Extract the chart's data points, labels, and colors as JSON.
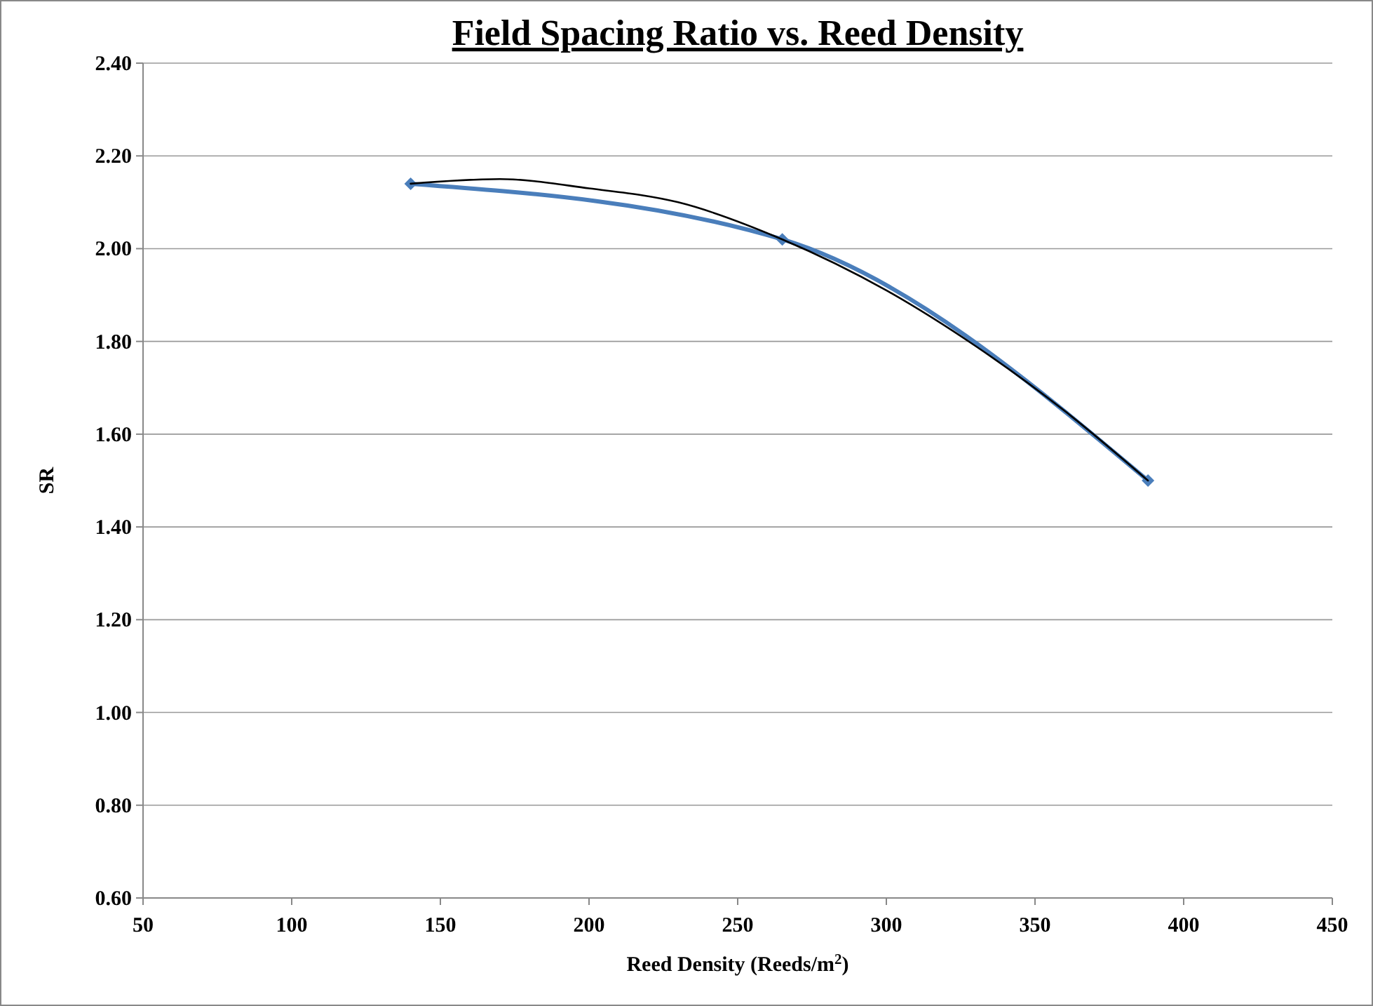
{
  "chart_data": {
    "type": "line",
    "title": "Field Spacing Ratio vs. Reed Density",
    "xlabel": "Reed Density (Reeds/m$^{2}$)",
    "ylabel": "SR",
    "xlim": [
      50,
      450
    ],
    "xticks": [
      50,
      100,
      150,
      200,
      250,
      300,
      350,
      400,
      450
    ],
    "ylim": [
      0.6,
      2.4
    ],
    "yticks": [
      {
        "value": 0.6,
        "label": "0.60"
      },
      {
        "value": 0.8,
        "label": "0.80"
      },
      {
        "value": 1.0,
        "label": "1.00"
      },
      {
        "value": 1.2,
        "label": "1.20"
      },
      {
        "value": 1.4,
        "label": "1.40"
      },
      {
        "value": 1.6,
        "label": "1.60"
      },
      {
        "value": 1.8,
        "label": "1.80"
      },
      {
        "value": 2.0,
        "label": "2.00"
      },
      {
        "value": 2.2,
        "label": "2.20"
      },
      {
        "value": 2.4,
        "label": "2.40"
      }
    ],
    "grid": "y",
    "line_style": "solid",
    "series": [
      {
        "color": "#4a7ebb",
        "marker": "diamond",
        "x": [
          140,
          265,
          388
        ],
        "values": [
          2.14,
          2.02,
          1.5
        ]
      },
      {
        "type": "line",
        "color": "#000000",
        "marker": "none",
        "x": [
          140,
          170,
          200,
          230,
          265,
          300,
          330,
          360,
          388
        ],
        "values": [
          2.14,
          2.15,
          2.13,
          2.1,
          2.02,
          1.91,
          1.79,
          1.65,
          1.5
        ]
      }
    ]
  }
}
